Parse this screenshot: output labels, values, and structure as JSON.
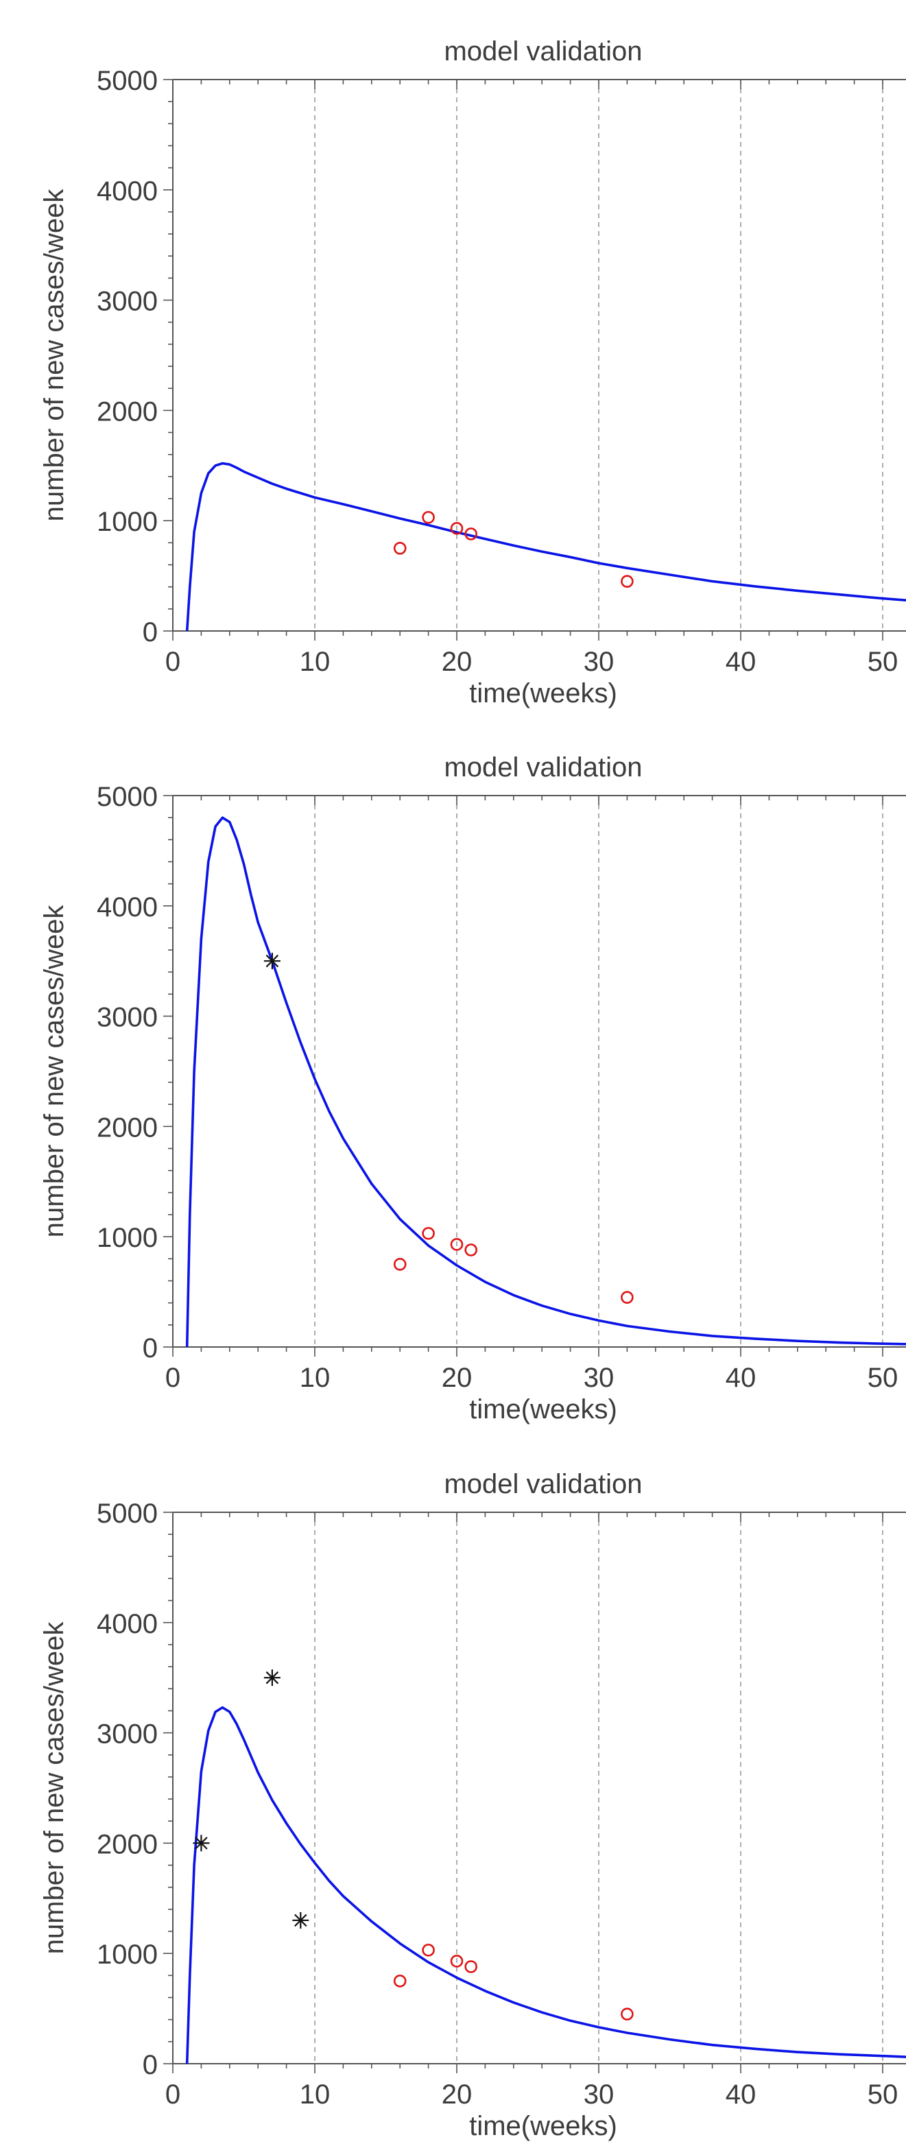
{
  "figure": {
    "colors": {
      "curve": "#0a14e6",
      "observed": "#e01414",
      "fitted_points": "#111111",
      "axis": "#555555",
      "grid": "#9a9a9a"
    }
  },
  "chart_data": [
    {
      "type": "line",
      "title": "model validation",
      "xlabel": "time(weeks)",
      "ylabel": "number of new cases/week",
      "xlim": [
        0,
        52
      ],
      "ylim": [
        0,
        5000
      ],
      "xticks": [
        "0",
        "10",
        "20",
        "30",
        "40",
        "50"
      ],
      "yticks": [
        "0",
        "1000",
        "2000",
        "3000",
        "4000",
        "5000"
      ],
      "grid": "x-dashed",
      "series": [
        {
          "kind": "line",
          "x": [
            1,
            1.2,
            1.5,
            2,
            2.5,
            3,
            3.5,
            4,
            4.5,
            5,
            6,
            7,
            8,
            9,
            10,
            12,
            14,
            16,
            18,
            20,
            22,
            24,
            26,
            28,
            30,
            32,
            35,
            38,
            41,
            44,
            47,
            50,
            52
          ],
          "values": [
            0,
            400,
            900,
            1250,
            1430,
            1500,
            1520,
            1510,
            1480,
            1445,
            1390,
            1335,
            1290,
            1250,
            1210,
            1150,
            1085,
            1020,
            960,
            895,
            835,
            775,
            720,
            670,
            615,
            570,
            510,
            450,
            405,
            365,
            330,
            295,
            275
          ]
        },
        {
          "kind": "scatter-circle",
          "x": [
            16,
            18,
            20,
            21,
            32
          ],
          "values": [
            750,
            1030,
            930,
            880,
            450
          ]
        },
        {
          "kind": "scatter-star",
          "x": [],
          "values": []
        }
      ]
    },
    {
      "type": "line",
      "title": "model validation",
      "xlabel": "time(weeks)",
      "ylabel": "number of new cases/week",
      "xlim": [
        0,
        52
      ],
      "ylim": [
        0,
        5000
      ],
      "xticks": [
        "0",
        "10",
        "20",
        "30",
        "40",
        "50"
      ],
      "yticks": [
        "0",
        "1000",
        "2000",
        "3000",
        "4000",
        "5000"
      ],
      "grid": "x-dashed",
      "series": [
        {
          "kind": "line",
          "x": [
            1,
            1.2,
            1.5,
            2,
            2.5,
            3,
            3.5,
            4,
            4.5,
            5,
            5.5,
            6,
            7,
            8,
            9,
            10,
            11,
            12,
            14,
            16,
            18,
            20,
            22,
            24,
            26,
            28,
            30,
            32,
            35,
            38,
            41,
            44,
            47,
            50,
            52
          ],
          "values": [
            0,
            1200,
            2500,
            3700,
            4400,
            4720,
            4800,
            4760,
            4600,
            4380,
            4100,
            3850,
            3500,
            3120,
            2760,
            2430,
            2140,
            1890,
            1480,
            1160,
            920,
            740,
            590,
            470,
            375,
            300,
            240,
            190,
            140,
            100,
            75,
            55,
            40,
            30,
            25
          ]
        },
        {
          "kind": "scatter-circle",
          "x": [
            16,
            18,
            20,
            21,
            32
          ],
          "values": [
            750,
            1030,
            930,
            880,
            450
          ]
        },
        {
          "kind": "scatter-star",
          "x": [
            7
          ],
          "values": [
            3500
          ]
        }
      ]
    },
    {
      "type": "line",
      "title": "model validation",
      "xlabel": "time(weeks)",
      "ylabel": "number of new cases/week",
      "xlim": [
        0,
        52
      ],
      "ylim": [
        0,
        5000
      ],
      "xticks": [
        "0",
        "10",
        "20",
        "30",
        "40",
        "50"
      ],
      "yticks": [
        "0",
        "1000",
        "2000",
        "3000",
        "4000",
        "5000"
      ],
      "grid": "x-dashed",
      "series": [
        {
          "kind": "line",
          "x": [
            1,
            1.2,
            1.5,
            2,
            2.5,
            3,
            3.5,
            4,
            4.5,
            5,
            5.5,
            6,
            7,
            8,
            9,
            10,
            11,
            12,
            14,
            16,
            18,
            20,
            22,
            24,
            26,
            28,
            30,
            32,
            35,
            38,
            41,
            44,
            47,
            50,
            52
          ],
          "values": [
            0,
            800,
            1800,
            2650,
            3020,
            3190,
            3230,
            3190,
            3080,
            2940,
            2790,
            2640,
            2390,
            2180,
            1990,
            1820,
            1660,
            1520,
            1290,
            1090,
            920,
            780,
            660,
            555,
            465,
            390,
            330,
            280,
            220,
            170,
            135,
            105,
            85,
            70,
            60
          ]
        },
        {
          "kind": "scatter-circle",
          "x": [
            16,
            18,
            20,
            21,
            32
          ],
          "values": [
            750,
            1030,
            930,
            880,
            450
          ]
        },
        {
          "kind": "scatter-star",
          "x": [
            2,
            7,
            9
          ],
          "values": [
            2000,
            3500,
            1300
          ]
        }
      ]
    }
  ]
}
